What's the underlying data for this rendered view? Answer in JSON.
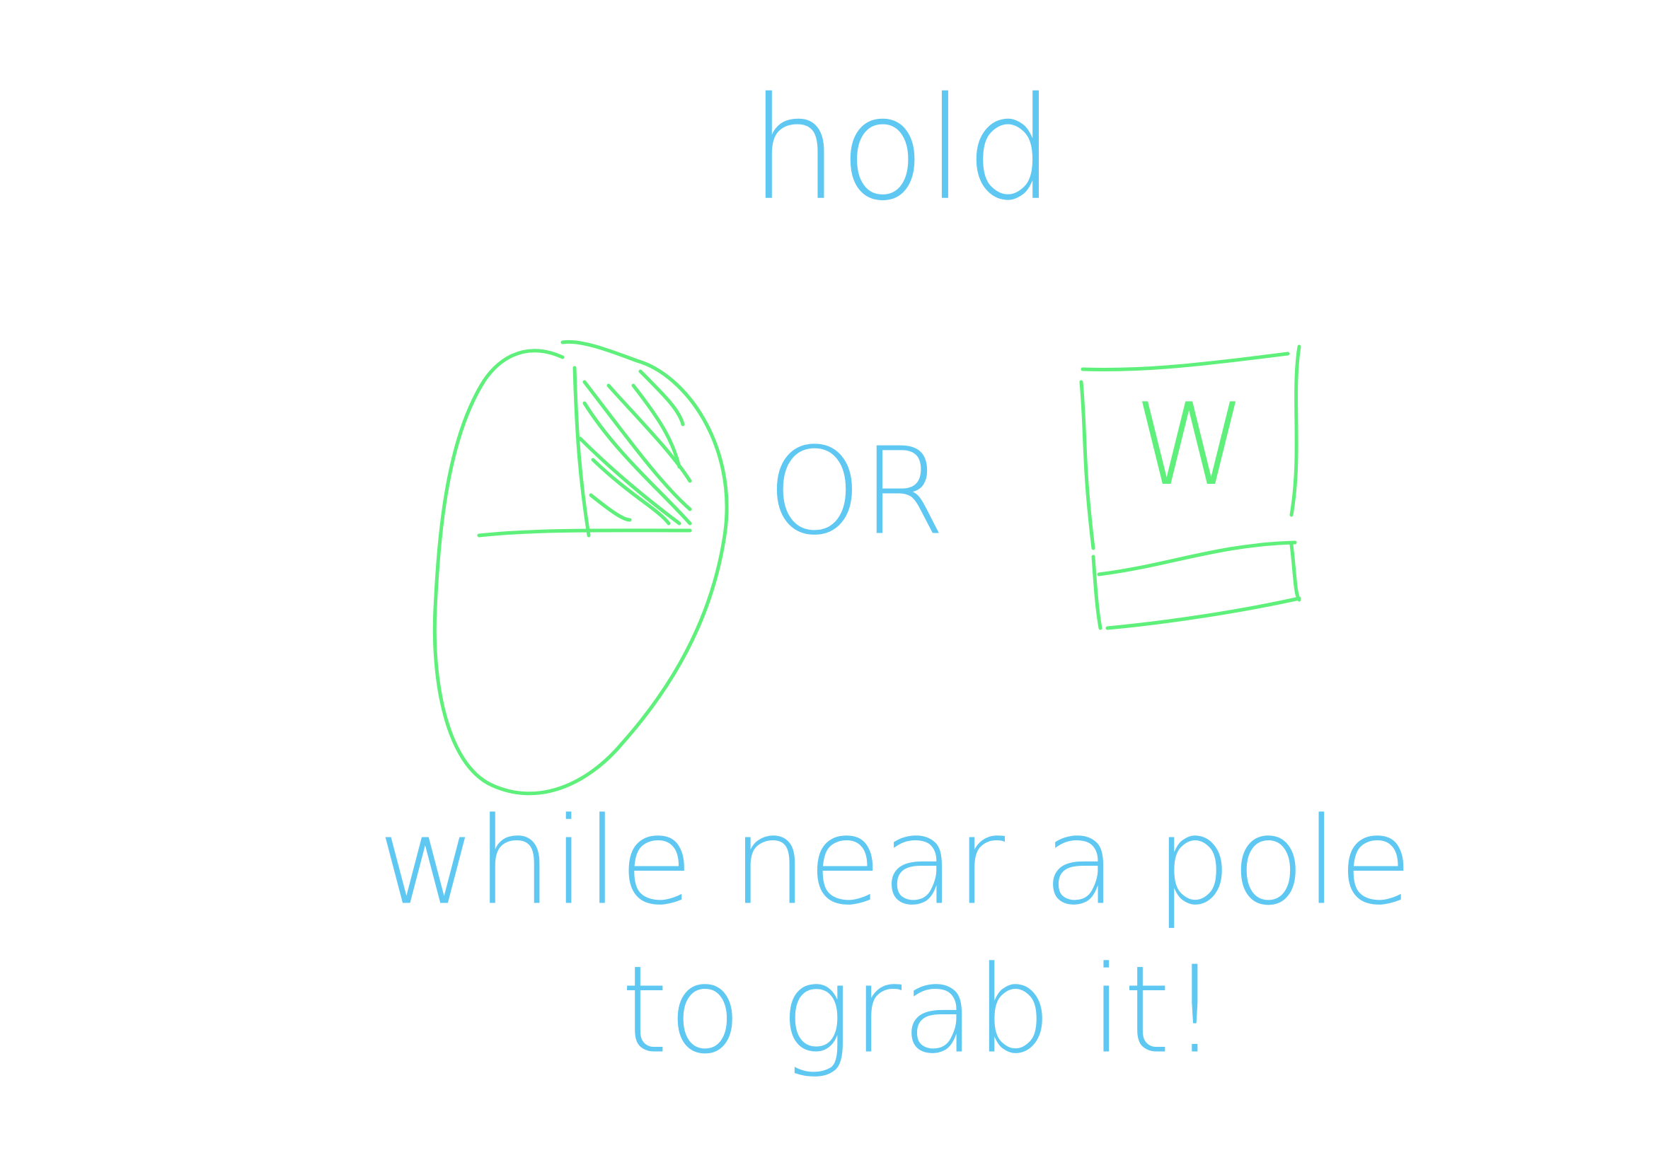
{
  "instruction": {
    "verb": "hold",
    "or": "OR",
    "key": "W",
    "line1": "while near a pole",
    "line2": "to grab it!"
  }
}
